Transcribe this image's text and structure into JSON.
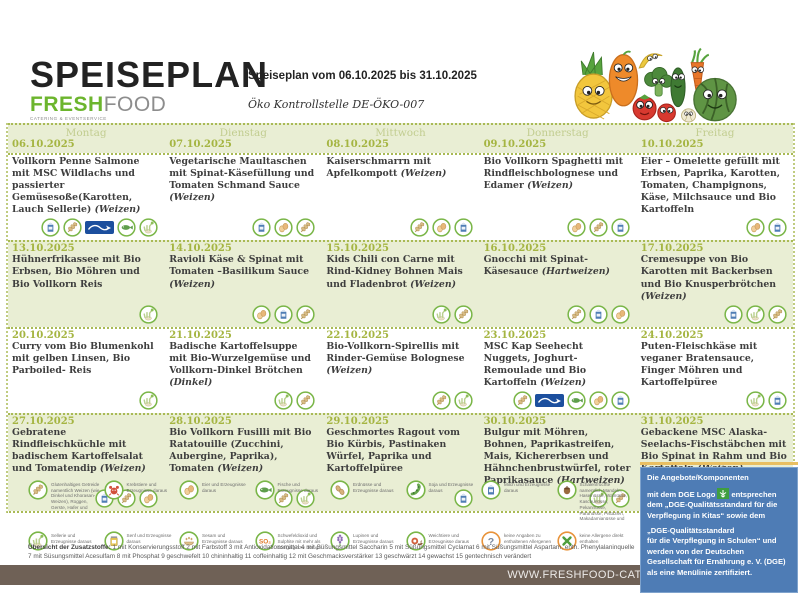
{
  "header": {
    "logo_title": "SPEISEPLAN",
    "logo_fresh": "FRESH",
    "logo_food": "FOOD",
    "logo_tagline": "CATERING & EVENTSERVICE",
    "plan_range": "Speiseplan vom 06.10.2025 bis 31.10.2025",
    "eco_note": "Öko Kontrollstelle DE-ÖKO-007"
  },
  "colors": {
    "accent_green": "#6cb52d",
    "band_green": "#e9eed4",
    "date_green": "#a5b542",
    "footer_brown": "#6f6156",
    "dge_blue": "#4e7cb5",
    "msc_blue": "#1c4f9e"
  },
  "menu": {
    "day_names": [
      "Montag",
      "Dienstag",
      "Mittwoch",
      "Donnerstag",
      "Freitag"
    ],
    "weeks": [
      {
        "days": [
          {
            "date": "06.10.2025",
            "text": "Vollkorn Penne Salmone mit MSC Wildlachs und passierter Gemüsesoße(Karotten, Lauch Sellerie)",
            "note": "(Weizen)",
            "icons": [
              "milk",
              "wheat",
              "msc",
              "fish",
              "celery"
            ]
          },
          {
            "date": "07.10.2025",
            "text": "Vegetarische Maultaschen mit Spinat-Käsefüllung und Tomaten Schmand Sauce",
            "note": "(Weizen)",
            "icons": [
              "milk",
              "egg",
              "wheat"
            ]
          },
          {
            "date": "08.10.2025",
            "text": "Kaiserschmarrn mit Apfelkompott",
            "note": "(Weizen)",
            "icons": [
              "wheat",
              "egg",
              "milk"
            ]
          },
          {
            "date": "09.10.2025",
            "text": "Bio  Vollkorn Spaghetti mit Rindfleischbolognese und Edamer",
            "note": "(Weizen)",
            "icons": [
              "egg",
              "wheat",
              "milk"
            ]
          },
          {
            "date": "10.10.2025",
            "text": "Eier – Omelette gefüllt mit Erbsen, Paprika, Karotten, Tomaten, Champignons, Käse, Milchsauce und Bio Kartoffeln",
            "note": "",
            "icons": [
              "egg",
              "milk"
            ]
          }
        ]
      },
      {
        "days": [
          {
            "date": "13.10.2025",
            "text": "Hühnerfrikassee mit Bio Erbsen, Bio Möhren und Bio Vollkorn Reis",
            "note": "",
            "icons": [
              "celery"
            ]
          },
          {
            "date": "14.10.2025",
            "text": "Ravioli Käse & Spinat mit Tomaten –Basilikum Sauce",
            "note": "(Weizen)",
            "icons": [
              "egg",
              "milk",
              "wheat"
            ]
          },
          {
            "date": "15.10.2025",
            "text": "Kids Chili con Carne mit Rind-Kidney Bohnen Mais und Fladenbrot",
            "note": "(Weizen)",
            "icons": [
              "celery",
              "wheat"
            ]
          },
          {
            "date": "16.10.2025",
            "text": "Gnocchi mit Spinat-Käsesauce",
            "note": "(Hartweizen)",
            "icons": [
              "wheat",
              "milk",
              "egg"
            ]
          },
          {
            "date": "17.10.2025",
            "text": "Cremesuppe von Bio Karotten mit Backerbsen und Bio Knusperbrötchen",
            "note": "(Weizen)",
            "icons": [
              "milk",
              "celery",
              "wheat"
            ]
          }
        ]
      },
      {
        "days": [
          {
            "date": "20.10.2025",
            "text": "Curry vom Bio Blumenkohl mit gelben Linsen, Bio Parboiled- Reis",
            "note": "",
            "icons": [
              "celery"
            ]
          },
          {
            "date": "21.10.2025",
            "text": "Badische Kartoffelsuppe mit Bio-Wurzelgemüse und Vollkorn-Dinkel Brötchen",
            "note": "(Dinkel)",
            "icons": [
              "celery",
              "wheat"
            ]
          },
          {
            "date": "22.10.2025",
            "text": "Bio-Vollkorn-Spirellis mit Rinder-Gemüse Bolognese",
            "note": "(Weizen)",
            "icons": [
              "wheat",
              "celery"
            ]
          },
          {
            "date": "23.10.2025",
            "text": "MSC Kap Seehecht Nuggets, Joghurt-Remoulade und Bio Kartoffeln",
            "note": "(Weizen)",
            "icons": [
              "wheat",
              "msc",
              "fish",
              "egg",
              "milk"
            ]
          },
          {
            "date": "24.10.2025",
            "text": "Puten-Fleischkäse mit veganer Bratensauce, Finger Möhren und Kartoffelpüree",
            "note": "",
            "icons": [
              "celery",
              "milk"
            ]
          }
        ]
      },
      {
        "days": [
          {
            "date": "27.10.2025",
            "text": "Gebratene Rindfleischküchle mit badischem Kartoffelsalat und Tomatendip",
            "note": "(Weizen)",
            "icons": [
              "milk",
              "wheat",
              "egg"
            ]
          },
          {
            "date": "28.10.2025",
            "text": "Bio Vollkorn Fusilli mit Bio Ratatouille (Zucchini, Aubergine, Paprika), Tomaten",
            "note": "(Weizen)",
            "icons": [
              "wheat",
              "celery"
            ]
          },
          {
            "date": "29.10.2025",
            "text": "Geschmortes Ragout vom Bio Kürbis, Pastinaken Würfel, Paprika und Kartoffelpüree",
            "note": "",
            "icons": [
              "milk"
            ]
          },
          {
            "date": "30.10.2025",
            "text": "Bulgur  mit Möhren, Bohnen, Paprikastreifen, Mais, Kichererbsen und Hähnchenbrustwürfel, roter Paprikasauce",
            "note": "(Hartweizen)",
            "icons": [
              "celery",
              "wheat"
            ]
          },
          {
            "date": "31.10.2025",
            "text": "Gebackene MSC Alaska-Seelachs-Fischstäbchen mit Bio Spinat in Rahm und Bio Kartoffeln",
            "note": "(Weizen)",
            "icons": [
              "wheat",
              "msc",
              "fish",
              "milk"
            ]
          }
        ]
      }
    ]
  },
  "legend": {
    "items": [
      {
        "icon": "wheat",
        "label": "Glutenhaltiges Getreide namentlich Weizen (wie Dinkel und Khorasan-Weizen), Roggen, Gerste, Hafer und"
      },
      {
        "icon": "crab",
        "label": "Krebstiere und Erzeugnisse daraus"
      },
      {
        "icon": "egg",
        "label": "Eier und Erzeugnisse daraus"
      },
      {
        "icon": "fish",
        "label": "Fische und Erzeugnisse daraus"
      },
      {
        "icon": "peanut",
        "label": "Erdnüsse und Erzeugnisse daraus"
      },
      {
        "icon": "soy",
        "label": "Soja und Erzeugnisse daraus"
      },
      {
        "icon": "milk",
        "label": "Milch und Erzeugnisse daraus"
      },
      {
        "icon": "nuts",
        "label": "Schalenfrüchte namentlich Mandeln, Haselnüsse, Walnüsse, Kaschunüsse, Pekannüsse, Paranüsse, Pistazien, Makadamianüsse und"
      },
      {
        "icon": "celery",
        "label": "Sellerie und Erzeugnisse daraus"
      },
      {
        "icon": "mustard",
        "label": "Senf und Erzeugnisse daraus"
      },
      {
        "icon": "sesame",
        "label": "Sesam und Erzeugnisse daraus"
      },
      {
        "icon": "so2",
        "label": "Schwefeldioxid und Sulphite mit mehr als 10mg/kg bzw. 10mg/l"
      },
      {
        "icon": "lupin",
        "label": "Lupinen und Erzeugnisse daraus"
      },
      {
        "icon": "snail",
        "label": "Weichtiere und Erzeugnisse daraus"
      },
      {
        "icon": "question",
        "label": "keine Angaben zu enthaltenen Allergenen"
      },
      {
        "icon": "cross",
        "label": "keine Allergene direkt enthalten"
      }
    ]
  },
  "additives": {
    "heading": "Übersicht der Zusatzstoffe:",
    "line1": "1 mit Konservierungsstoff 2 mit Farbstoff 3 mit Antioxidationsmittel 4 mit Süßungsmittel Saccharin 5 mit Süßungsmittel Cyclamat 6 mit Süßungsmittel Aspartam, enth. Phenylalaninquelle 7",
    "line2": "mit Süsungsmittel Acesulfam 8 mit Phosphat 9 geschwefelt 10 chininhaltig 11 coffeinhaltig 12 mit Geschmacksverstärker 13 geschwärzt 14 gewachst 15 gentechnisch verändert"
  },
  "footer": {
    "website": "WWW.FRESHFOOD-CATERING.DE"
  },
  "dge_box": {
    "line1": "Die Angebote/Komponenten",
    "line2_before_logo": "mit dem DGE Logo",
    "line2_after_logo": "entsprechen dem „DGE-Qualitätsstandard für die Verpflegung in Kitas“ sowie  dem",
    "line3": "„DGE-Qualitätsstandard",
    "line4": "für die Verpflegung in Schulen“ und werden von der Deutschen Gesellschaft für Ernährung e. V. (DGE) als eine Menülinie zertifiziert."
  }
}
